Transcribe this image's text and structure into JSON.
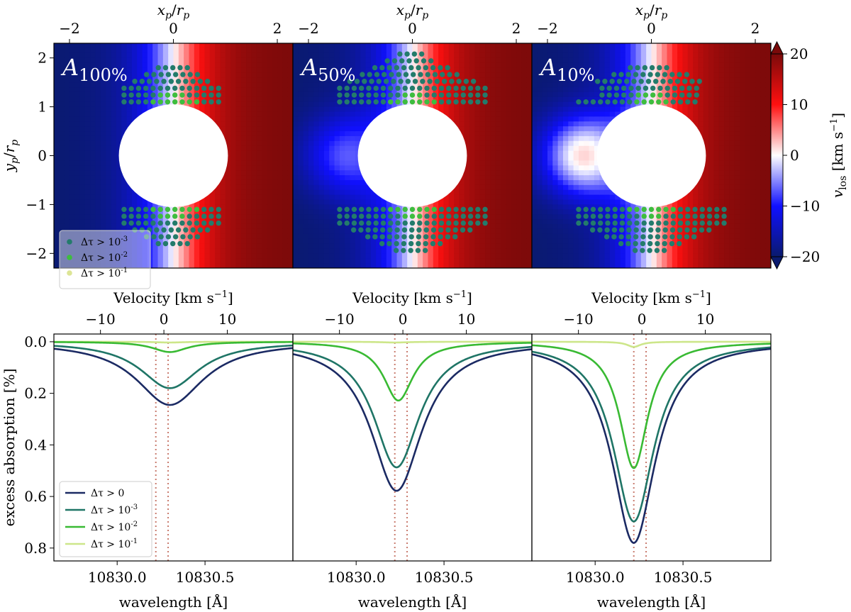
{
  "chart_data": [
    {
      "type": "heatmap",
      "row": "top",
      "shared": {
        "xlabel_top": "x_p/r_p",
        "ylabel": "y_p/r_p",
        "xlim": [
          -2.3,
          2.3
        ],
        "ylim": [
          -2.3,
          2.3
        ],
        "xticks": [
          -2,
          0,
          2
        ],
        "yticks": [
          -2,
          -1,
          0,
          1,
          2
        ],
        "colorbar": {
          "label": "v_los [km s^-1]",
          "range": [
            -20,
            20
          ],
          "ticks": [
            -20,
            -10,
            0,
            10,
            20
          ],
          "colors": [
            "#0a1a6e",
            "#1010ff",
            "#ffffff",
            "#ff1010",
            "#7a0a0a"
          ]
        },
        "planet_radius": 1,
        "legend": [
          "Δτ > 10^-3",
          "Δτ > 10^-2",
          "Δτ > 10^-1"
        ],
        "legend_colors": [
          "#237b6b",
          "#3ebd3e",
          "#dde596"
        ]
      },
      "panels": [
        {
          "title_base": "A",
          "title_sub": "100%",
          "wind_asymmetry": 0.0,
          "cap_top": 1.88,
          "cap_bottom": -1.88,
          "wing": 1.4
        },
        {
          "title_base": "A",
          "title_sub": "50%",
          "wind_asymmetry": 0.5,
          "cap_top": 2.12,
          "cap_bottom": -2.0,
          "wing": 1.95
        },
        {
          "title_base": "A",
          "title_sub": "10%",
          "wind_asymmetry": 0.9,
          "cap_top": 1.88,
          "cap_bottom": -2.0,
          "wing": 1.95
        }
      ]
    },
    {
      "type": "line",
      "row": "bottom",
      "shared": {
        "xlabel": "wavelength [Å]",
        "xlabel_top": "Velocity [km s^-1]",
        "ylabel": "excess absorption [%]",
        "xlim": [
          10829.64,
          10831.0
        ],
        "ylim": [
          0.85,
          -0.03
        ],
        "xticks": [
          10830.0,
          10830.5
        ],
        "xtick_labels": [
          "10830.0",
          "10830.5"
        ],
        "top_ticks": [
          -10,
          0,
          10
        ],
        "top_tick_positions_A": [
          10829.905,
          10830.266,
          10830.627
        ],
        "yticks": [
          0.0,
          0.2,
          0.4,
          0.6,
          0.8
        ],
        "ytick_labels": [
          "0.0",
          "0.2",
          "0.4",
          "0.6",
          "0.8"
        ],
        "ref_lines_A": [
          10830.22,
          10830.29
        ],
        "series_names": [
          "Δτ > 0",
          "Δτ > 10^-3",
          "Δτ > 10^-2",
          "Δτ > 10^-1"
        ],
        "series_colors": [
          "#1b2a63",
          "#1f7566",
          "#39ba33",
          "#cde68a"
        ]
      },
      "panels": [
        {
          "center": [
            10830.3,
            10830.3,
            10830.3,
            10830.3
          ],
          "depth": [
            0.245,
            0.18,
            0.04,
            0.003
          ],
          "width": [
            0.25,
            0.22,
            0.13,
            0.1
          ]
        },
        {
          "center": [
            10830.23,
            10830.23,
            10830.24,
            10830.22
          ],
          "depth": [
            0.578,
            0.487,
            0.228,
            0.003
          ],
          "width": [
            0.19,
            0.17,
            0.11,
            0.1
          ]
        },
        {
          "center": [
            10830.22,
            10830.22,
            10830.22,
            10830.22
          ],
          "depth": [
            0.78,
            0.697,
            0.49,
            0.02
          ],
          "width": [
            0.16,
            0.15,
            0.105,
            0.05
          ]
        }
      ]
    }
  ]
}
